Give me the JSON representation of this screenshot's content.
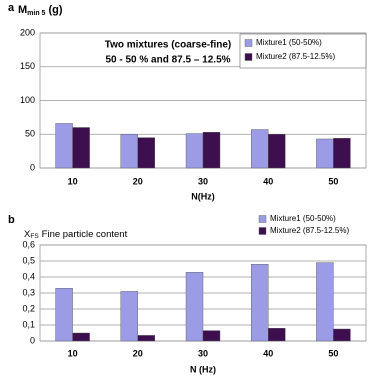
{
  "chart_data": [
    {
      "type": "bar",
      "panel": "a",
      "ylabel": "M",
      "ylabel_sub": "min 5",
      "ylabel_unit": "(g)",
      "annotations": [
        "Two mixtures (coarse-fine)",
        "50 - 50 % and 87.5 – 12.5%"
      ],
      "xlabel": "N(Hz)",
      "categories": [
        "10",
        "20",
        "30",
        "40",
        "50"
      ],
      "series": [
        {
          "name": "Mixture1 (50-50%)",
          "color": "#9b9be6",
          "values": [
            66,
            50,
            51,
            57,
            43
          ]
        },
        {
          "name": "Mixture2 (87.5-12.5%)",
          "color": "#3d0f4f",
          "values": [
            60,
            45,
            53,
            50,
            44
          ]
        }
      ],
      "ylim": [
        0,
        200
      ],
      "yticks": [
        0,
        50,
        100,
        150,
        200
      ],
      "grid": true,
      "legend": "top-right"
    },
    {
      "type": "bar",
      "panel": "b",
      "title": "X",
      "title_sub": "FS",
      "title_rest": "Fine particle content",
      "xlabel": "N (Hz)",
      "categories": [
        "10",
        "20",
        "30",
        "40",
        "50"
      ],
      "series": [
        {
          "name": "Mixture1 (50-50%)",
          "color": "#9b9be6",
          "values": [
            0.33,
            0.31,
            0.43,
            0.48,
            0.49
          ]
        },
        {
          "name": "Mixture2 (87.5-12.5%)",
          "color": "#3d0f4f",
          "values": [
            0.05,
            0.035,
            0.065,
            0.08,
            0.075
          ]
        }
      ],
      "ylim": [
        0,
        0.6
      ],
      "yticks": [
        0,
        {
          "value": 0.1,
          "label": "0,1"
        },
        {
          "value": 0.2,
          "label": "0,2"
        },
        {
          "value": 0.3,
          "label": "0,3"
        },
        {
          "value": 0.4,
          "label": "0,4"
        },
        {
          "value": 0.5,
          "label": "0,5"
        },
        {
          "value": 0.6,
          "label": "0,6"
        }
      ],
      "grid": true,
      "legend": "top-right"
    }
  ]
}
